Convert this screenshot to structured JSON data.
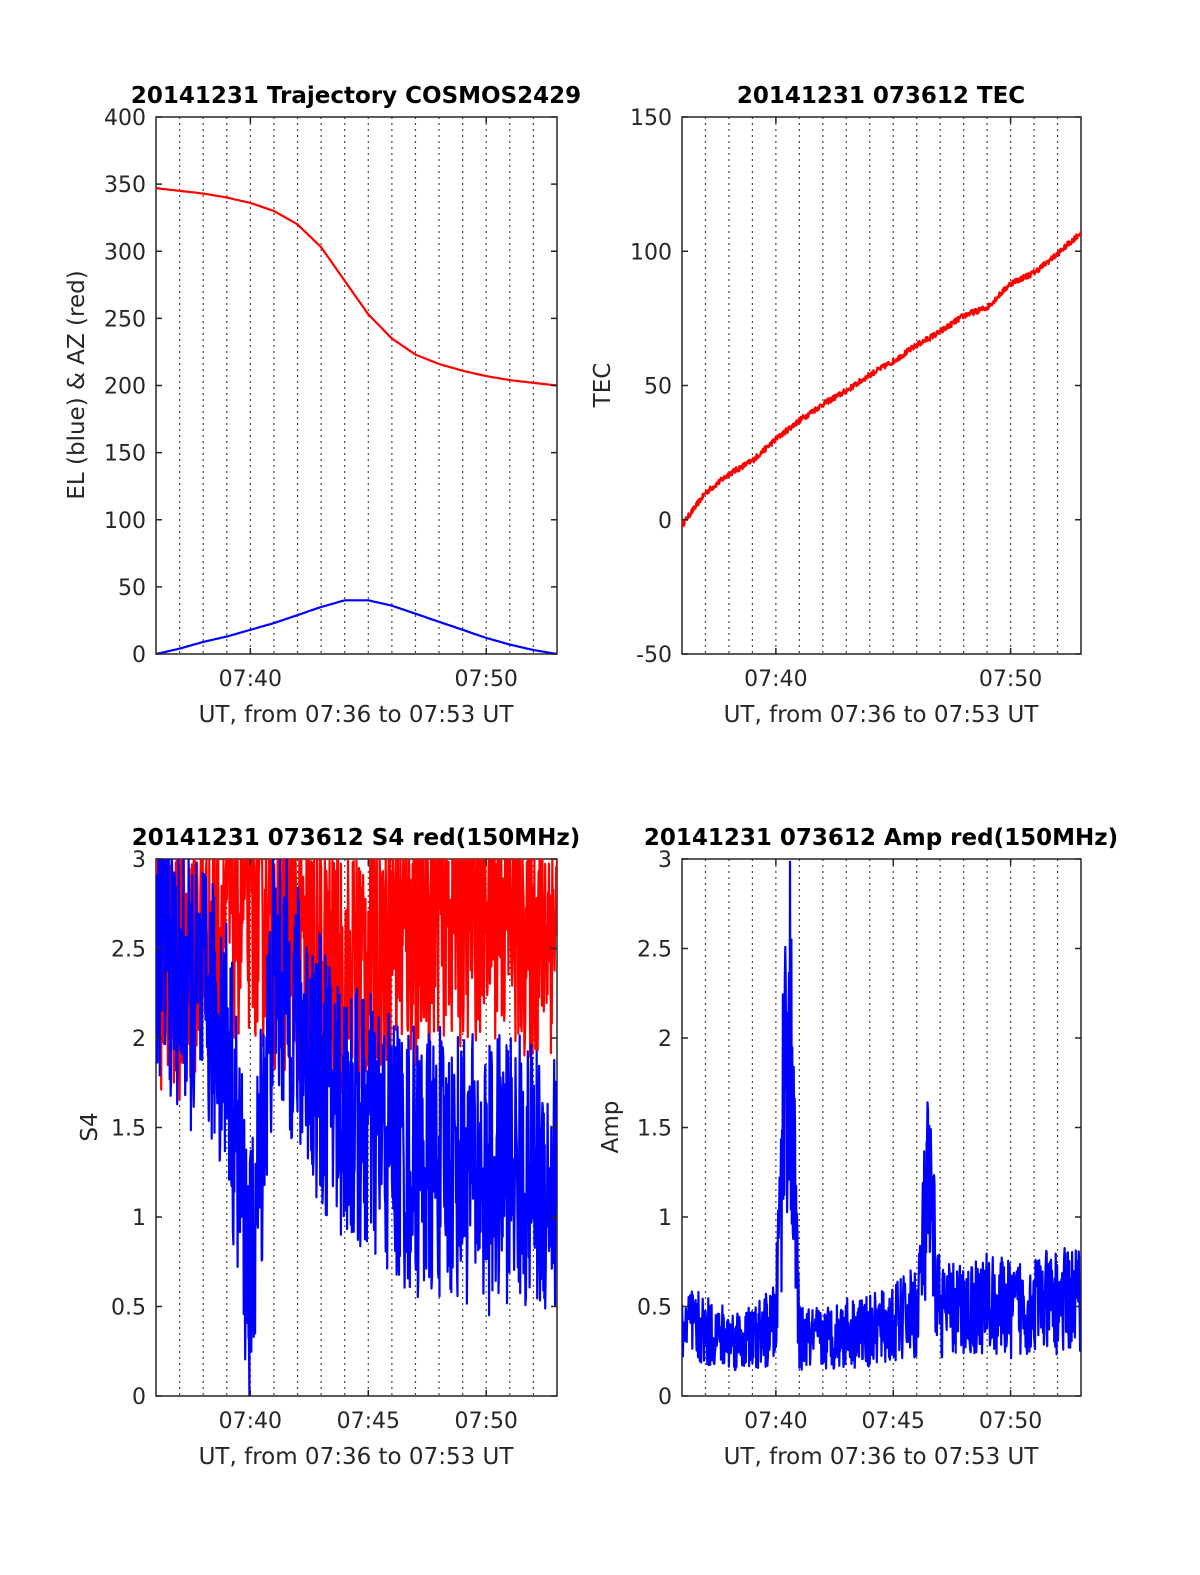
{
  "chart_data": [
    {
      "id": "trajectory",
      "type": "line",
      "title": "20141231 Trajectory COSMOS2429",
      "xlabel": "UT, from 07:36 to 07:53 UT",
      "ylabel": "EL (blue) & AZ (red)",
      "xlim": [
        "07:36",
        "07:53"
      ],
      "ylim": [
        0,
        400
      ],
      "xticks": [
        "07:40",
        "07:50"
      ],
      "yticks": [
        0,
        50,
        100,
        150,
        200,
        250,
        300,
        350,
        400
      ],
      "grid": "dotted vertical lines every minute",
      "series": [
        {
          "color": "#ff0000",
          "x": [
            "07:36",
            "07:37",
            "07:38",
            "07:39",
            "07:40",
            "07:41",
            "07:42",
            "07:43",
            "07:44",
            "07:45",
            "07:46",
            "07:47",
            "07:48",
            "07:49",
            "07:50",
            "07:51",
            "07:52",
            "07:53"
          ],
          "values": [
            347,
            345,
            343,
            340,
            336,
            330,
            320,
            303,
            278,
            253,
            235,
            223,
            216,
            211,
            207,
            204,
            202,
            200
          ]
        },
        {
          "color": "#0000ff",
          "x": [
            "07:36",
            "07:37",
            "07:38",
            "07:39",
            "07:40",
            "07:41",
            "07:42",
            "07:43",
            "07:44",
            "07:45",
            "07:46",
            "07:47",
            "07:48",
            "07:49",
            "07:50",
            "07:51",
            "07:52",
            "07:53"
          ],
          "values": [
            0,
            4,
            9,
            13,
            18,
            23,
            29,
            35,
            40,
            40,
            36,
            30,
            24,
            18,
            12,
            7,
            3,
            0
          ]
        }
      ]
    },
    {
      "id": "tec",
      "type": "line",
      "title": "20141231 073612 TEC",
      "xlabel": "UT, from 07:36 to 07:53 UT",
      "ylabel": "TEC",
      "xlim": [
        "07:36",
        "07:53"
      ],
      "ylim": [
        -50,
        150
      ],
      "xticks": [
        "07:40",
        "07:50"
      ],
      "yticks": [
        -50,
        0,
        50,
        100,
        150
      ],
      "grid": "dotted vertical lines every minute",
      "series": [
        {
          "color": "#ff0000",
          "x": [
            "07:36",
            "07:37",
            "07:38",
            "07:39",
            "07:40",
            "07:41",
            "07:42",
            "07:43",
            "07:44",
            "07:45",
            "07:46",
            "07:47",
            "07:48",
            "07:49",
            "07:50",
            "07:51",
            "07:52",
            "07:53"
          ],
          "values": [
            -2,
            10,
            17,
            22,
            30,
            37,
            43,
            48,
            54,
            59,
            65,
            70,
            76,
            79,
            88,
            92,
            99,
            107
          ]
        }
      ]
    },
    {
      "id": "s4",
      "type": "line",
      "title": "20141231 073612 S4 red(150MHz)",
      "xlabel": "UT, from 07:36 to 07:53 UT",
      "ylabel": "S4",
      "xlim": [
        "07:36",
        "07:53"
      ],
      "ylim": [
        0,
        3
      ],
      "xticks": [
        "07:40",
        "07:45",
        "07:50"
      ],
      "yticks": [
        0,
        0.5,
        1,
        1.5,
        2,
        2.5,
        3
      ],
      "grid": "dotted vertical lines every minute",
      "series": [
        {
          "color": "#ff0000",
          "x": [
            "07:36",
            "07:37",
            "07:38",
            "07:39",
            "07:40",
            "07:41",
            "07:42",
            "07:43",
            "07:44",
            "07:45",
            "07:46",
            "07:47",
            "07:48",
            "07:49",
            "07:50",
            "07:51",
            "07:52",
            "07:53"
          ],
          "values": [
            2.5,
            2.4,
            2.6,
            2.7,
            2.8,
            2.6,
            2.5,
            2.4,
            2.3,
            2.5,
            2.6,
            2.6,
            2.8,
            2.7,
            2.8,
            2.7,
            2.6,
            2.7
          ]
        },
        {
          "color": "#0000ff",
          "x": [
            "07:36",
            "07:37",
            "07:38",
            "07:39",
            "07:40",
            "07:41",
            "07:42",
            "07:43",
            "07:44",
            "07:45",
            "07:46",
            "07:47",
            "07:48",
            "07:49",
            "07:50",
            "07:51",
            "07:52",
            "07:53"
          ],
          "values": [
            2.6,
            2.3,
            2.2,
            2.0,
            0.6,
            2.4,
            2.1,
            1.8,
            1.6,
            1.5,
            1.4,
            1.3,
            1.3,
            1.3,
            1.2,
            1.3,
            1.2,
            1.2
          ]
        }
      ]
    },
    {
      "id": "amp",
      "type": "line",
      "title": "20141231 073612 Amp red(150MHz)",
      "xlabel": "UT, from 07:36 to 07:53 UT",
      "ylabel": "Amp",
      "xlim": [
        "07:36",
        "07:53"
      ],
      "ylim": [
        0,
        3
      ],
      "xticks": [
        "07:40",
        "07:45",
        "07:50"
      ],
      "yticks": [
        0,
        0.5,
        1,
        1.5,
        2,
        2.5,
        3
      ],
      "grid": "dotted vertical lines every minute",
      "series": [
        {
          "color": "#0000ff",
          "x": [
            "07:36",
            "07:37",
            "07:38",
            "07:39",
            "07:40",
            "07:40.5",
            "07:41",
            "07:42",
            "07:43",
            "07:44",
            "07:45",
            "07:46",
            "07:46.5",
            "07:47",
            "07:48",
            "07:49",
            "07:50",
            "07:51",
            "07:52",
            "07:53"
          ],
          "values": [
            0.5,
            0.45,
            0.4,
            0.4,
            0.5,
            2.9,
            0.4,
            0.4,
            0.45,
            0.45,
            0.5,
            0.6,
            1.4,
            0.6,
            0.6,
            0.65,
            0.6,
            0.65,
            0.65,
            0.7
          ]
        }
      ]
    }
  ]
}
